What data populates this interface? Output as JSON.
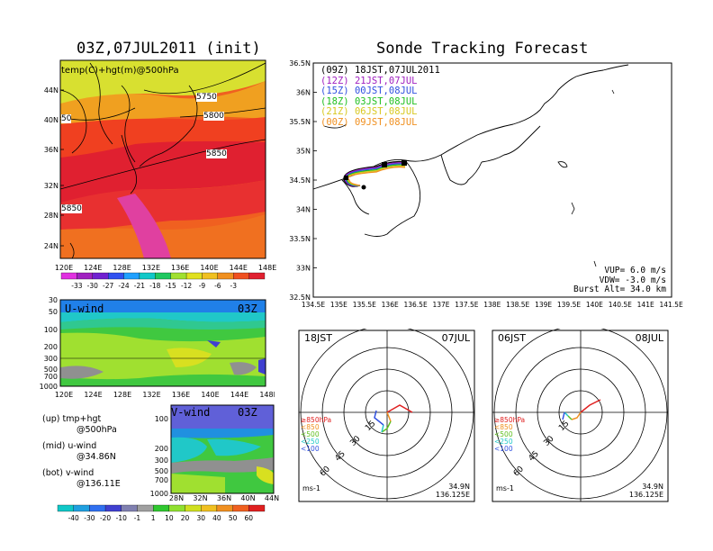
{
  "titles": {
    "map": "03Z,07JUL2011 (init)",
    "sonde": "Sonde Tracking Forecast"
  },
  "map": {
    "label": "temp(C)+hgt(m)@500hPa",
    "lat_ticks": [
      "44N",
      "40N",
      "36N",
      "32N",
      "28N",
      "24N"
    ],
    "lon_ticks": [
      "120E",
      "124E",
      "128E",
      "132E",
      "136E",
      "140E",
      "144E",
      "148E"
    ],
    "contours": [
      "5750",
      "5800",
      "5850",
      "5850"
    ],
    "edge_label": "50"
  },
  "temp_colorbar": {
    "labels": [
      "-33",
      "-30",
      "-27",
      "-24",
      "-21",
      "-18",
      "-15",
      "-12",
      "-9",
      "-6",
      "-3"
    ],
    "colors": [
      "#e030e0",
      "#a020c0",
      "#7020d0",
      "#3050f0",
      "#20a0ff",
      "#10c8c8",
      "#20c860",
      "#a0e030",
      "#e0e020",
      "#f0c020",
      "#f09020",
      "#f05020",
      "#e02030"
    ]
  },
  "uwind": {
    "label": "U-wind",
    "time": "03Z",
    "pressure_ticks": [
      "30",
      "50",
      "100",
      "200",
      "300",
      "500",
      "700",
      "1000"
    ],
    "lon_ticks": [
      "120E",
      "124E",
      "128E",
      "132E",
      "136E",
      "140E",
      "144E",
      "148E"
    ]
  },
  "vwind": {
    "label": "V-wind",
    "time": "03Z",
    "pressure_ticks": [
      "100",
      "200",
      "300",
      "500",
      "700",
      "1000"
    ],
    "lat_ticks": [
      "28N",
      "32N",
      "36N",
      "40N",
      "44N"
    ]
  },
  "wind_colorbar": {
    "labels": [
      "-40",
      "-30",
      "-20",
      "-10",
      "-1",
      "1",
      "10",
      "20",
      "30",
      "40",
      "50",
      "60"
    ],
    "colors": [
      "#10c8c8",
      "#20a0e0",
      "#3070f0",
      "#4040d0",
      "#8080b0",
      "#a0a0a0",
      "#30c830",
      "#90e030",
      "#d0e020",
      "#f0c020",
      "#f09020",
      "#f06020",
      "#e02020"
    ]
  },
  "legend_notes": [
    {
      "a": "(up) tmp+hgt",
      "b": "@500hPa"
    },
    {
      "a": "(mid) u-wind",
      "b": "@34.86N"
    },
    {
      "a": "(bot) v-wind",
      "b": "@136.11E"
    }
  ],
  "track": {
    "lat_ticks": [
      "36.5N",
      "36N",
      "35.5N",
      "35N",
      "34.5N",
      "34N",
      "33.5N",
      "33N",
      "32.5N"
    ],
    "lon_ticks": [
      "134.5E",
      "135E",
      "135.5E",
      "136E",
      "136.5E",
      "137E",
      "137.5E",
      "138E",
      "138.5E",
      "139E",
      "139.5E",
      "140E",
      "140.5E",
      "141E",
      "141.5E"
    ],
    "legend": [
      {
        "run": "(09Z)",
        "time": "18JST,07JUL2011",
        "color": "#000000"
      },
      {
        "run": "(12Z)",
        "time": "21JST,07JUL",
        "color": "#a020c0"
      },
      {
        "run": "(15Z)",
        "time": "00JST,08JUL",
        "color": "#3050e0"
      },
      {
        "run": "(18Z)",
        "time": "03JST,08JUL",
        "color": "#20c020"
      },
      {
        "run": "(21Z)",
        "time": "06JST,08JUL",
        "color": "#d8c820"
      },
      {
        "run": "(00Z)",
        "time": "09JST,08JUL",
        "color": "#f09020"
      }
    ],
    "params": [
      "VUP= 6.0 m/s",
      "VDW= -3.0 m/s",
      "Burst Alt= 34.0 km"
    ]
  },
  "hodo_left": {
    "time": "18JST",
    "date": "07JUL",
    "levels": [
      "≥850hPa",
      "<850",
      "<500",
      "<250",
      "<100"
    ],
    "rings": [
      "15",
      "30",
      "45",
      "60"
    ],
    "unit": "ms-1",
    "position": [
      "34.9N",
      "136.125E"
    ]
  },
  "hodo_right": {
    "time": "06JST",
    "date": "08JUL",
    "levels": [
      "≥850hPa",
      "<850",
      "<500",
      "<250",
      "<100"
    ],
    "rings": [
      "15",
      "30",
      "45",
      "60"
    ],
    "unit": "ms-1",
    "position": [
      "34.9N",
      "136.125E"
    ]
  },
  "level_colors": [
    "#e02020",
    "#f09020",
    "#60c020",
    "#20c8c8",
    "#3050e0"
  ]
}
